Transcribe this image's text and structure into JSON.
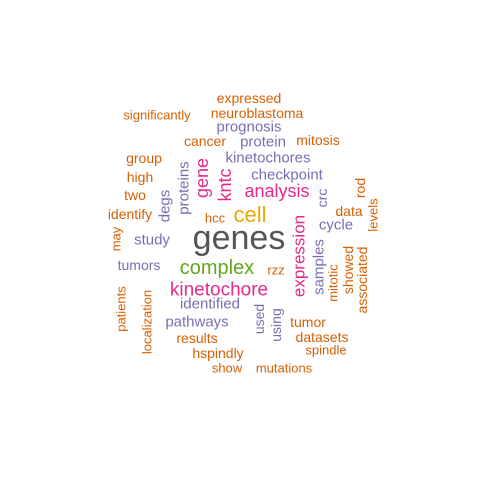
{
  "colors": {
    "gray": "#555555",
    "gold": "#e6ab02",
    "green": "#66a61e",
    "magenta": "#e7298a",
    "purple": "#7570b3",
    "orange": "#d95f02"
  },
  "words": [
    {
      "text": "genes",
      "color": "gray"
    },
    {
      "text": "cell",
      "color": "gold"
    },
    {
      "text": "complex",
      "color": "green"
    },
    {
      "text": "kinetochore",
      "color": "magenta"
    },
    {
      "text": "expression",
      "color": "magenta"
    },
    {
      "text": "analysis",
      "color": "magenta"
    },
    {
      "text": "kntc",
      "color": "magenta"
    },
    {
      "text": "gene",
      "color": "magenta"
    },
    {
      "text": "proteins",
      "color": "purple"
    },
    {
      "text": "degs",
      "color": "purple"
    },
    {
      "text": "kinetochores",
      "color": "purple"
    },
    {
      "text": "checkpoint",
      "color": "purple"
    },
    {
      "text": "protein",
      "color": "purple"
    },
    {
      "text": "prognosis",
      "color": "purple"
    },
    {
      "text": "cycle",
      "color": "purple"
    },
    {
      "text": "crc",
      "color": "purple"
    },
    {
      "text": "samples",
      "color": "purple"
    },
    {
      "text": "identified",
      "color": "purple"
    },
    {
      "text": "pathways",
      "color": "purple"
    },
    {
      "text": "study",
      "color": "purple"
    },
    {
      "text": "tumors",
      "color": "purple"
    },
    {
      "text": "used",
      "color": "purple"
    },
    {
      "text": "using",
      "color": "purple"
    },
    {
      "text": "expressed",
      "color": "orange"
    },
    {
      "text": "neuroblastoma",
      "color": "orange"
    },
    {
      "text": "significantly",
      "color": "orange"
    },
    {
      "text": "mitosis",
      "color": "orange"
    },
    {
      "text": "cancer",
      "color": "orange"
    },
    {
      "text": "group",
      "color": "orange"
    },
    {
      "text": "high",
      "color": "orange"
    },
    {
      "text": "two",
      "color": "orange"
    },
    {
      "text": "identify",
      "color": "orange"
    },
    {
      "text": "hcc",
      "color": "orange"
    },
    {
      "text": "rzz",
      "color": "orange"
    },
    {
      "text": "data",
      "color": "orange"
    },
    {
      "text": "rod",
      "color": "orange"
    },
    {
      "text": "levels",
      "color": "orange"
    },
    {
      "text": "may",
      "color": "orange"
    },
    {
      "text": "mitotic",
      "color": "orange"
    },
    {
      "text": "showed",
      "color": "orange"
    },
    {
      "text": "associated",
      "color": "orange"
    },
    {
      "text": "tumor",
      "color": "orange"
    },
    {
      "text": "datasets",
      "color": "orange"
    },
    {
      "text": "spindle",
      "color": "orange"
    },
    {
      "text": "results",
      "color": "orange"
    },
    {
      "text": "hspindly",
      "color": "orange"
    },
    {
      "text": "show",
      "color": "orange"
    },
    {
      "text": "mutations",
      "color": "orange"
    },
    {
      "text": "patients",
      "color": "orange"
    },
    {
      "text": "localization",
      "color": "orange"
    }
  ]
}
